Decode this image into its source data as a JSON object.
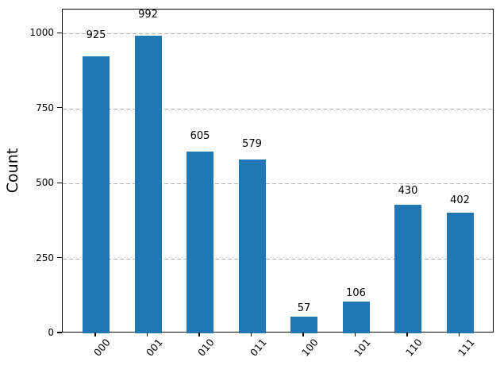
{
  "chart_data": {
    "type": "bar",
    "title": "",
    "xlabel": "",
    "ylabel": "Count",
    "categories": [
      "000",
      "001",
      "010",
      "011",
      "100",
      "101",
      "110",
      "111"
    ],
    "values": [
      925,
      992,
      605,
      579,
      57,
      106,
      430,
      402
    ],
    "value_labels": [
      "925",
      "992",
      "605",
      "579",
      "57",
      "106",
      "430",
      "402"
    ],
    "yticks": [
      0,
      250,
      500,
      750,
      1000
    ],
    "ytick_labels": [
      "0",
      "250",
      "500",
      "750",
      "1000"
    ],
    "ylim": [
      0,
      1080
    ],
    "grid": "horizontal-dashed",
    "legend_position": "none",
    "x_tick_rotation_deg": 50,
    "value_label_offset_factor": 1.05,
    "colors": {
      "bar": "#1f77b4",
      "grid": "#b0b0b0",
      "spine": "#000000",
      "text": "#000000",
      "background": "#ffffff"
    }
  }
}
